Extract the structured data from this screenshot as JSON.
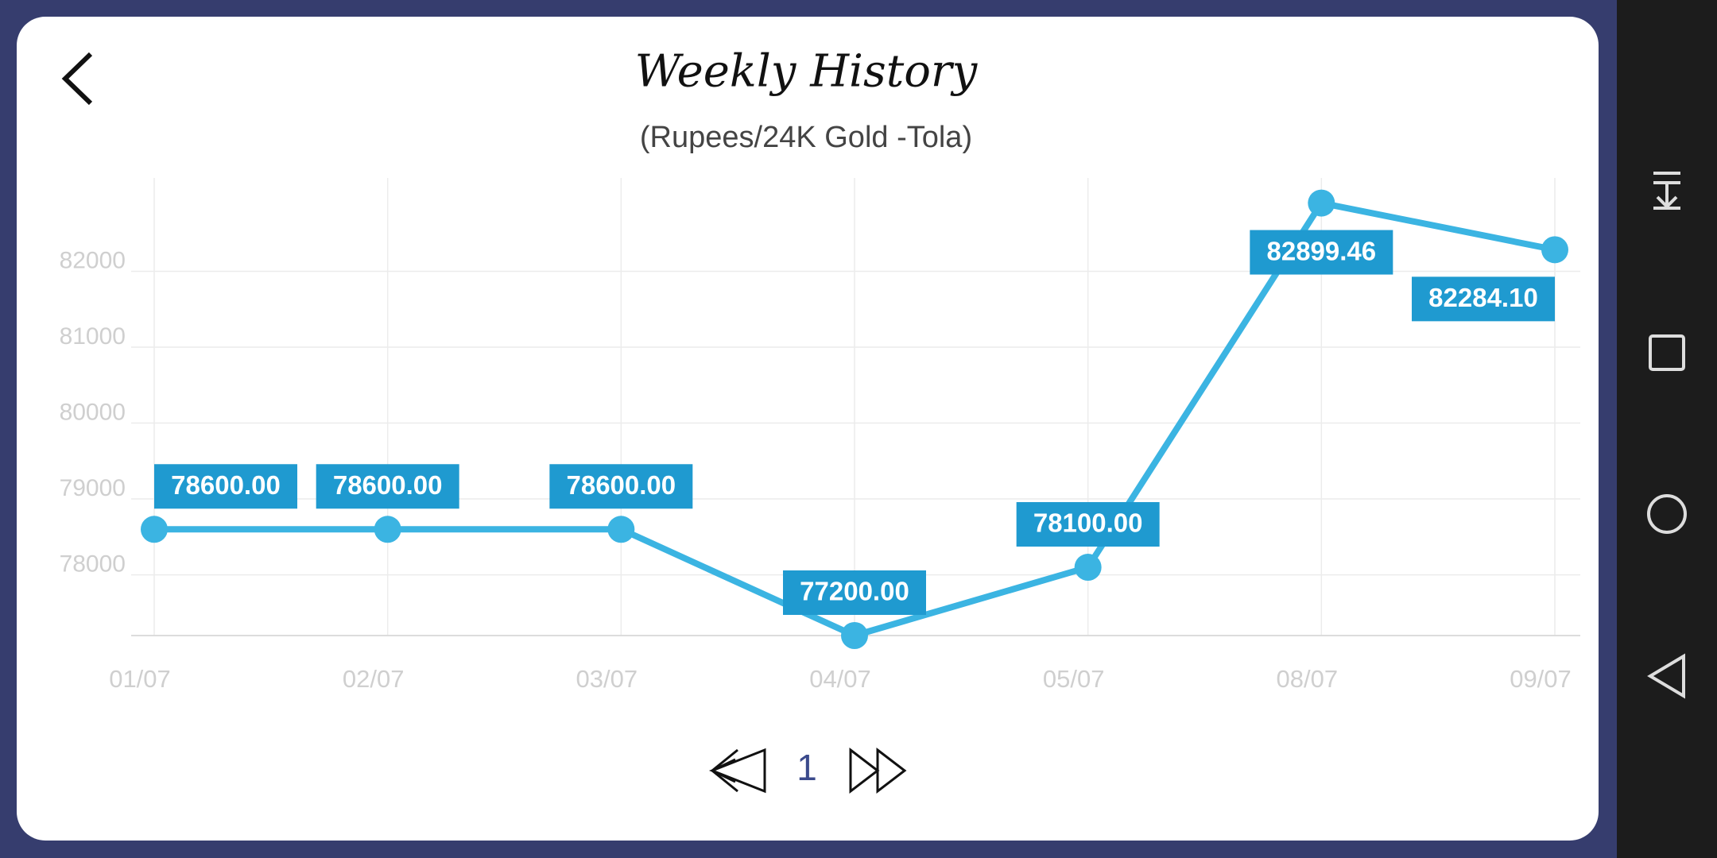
{
  "chart_data": {
    "type": "line",
    "title": "Weekly History",
    "subtitle": "(Rupees/24K Gold -Tola)",
    "categories": [
      "01/07",
      "02/07",
      "03/07",
      "04/07",
      "05/07",
      "08/07",
      "09/07"
    ],
    "values": [
      78600,
      78600,
      78600,
      77200,
      78100,
      82899.46,
      82284.1
    ],
    "value_labels": [
      "78600.00",
      "78600.00",
      "78600.00",
      "77200.00",
      "78100.00",
      "82899.46",
      "82284.10"
    ],
    "color": "#3bb4e2",
    "ylim": [
      77200,
      83230
    ],
    "yticks": [
      78000,
      79000,
      80000,
      81000,
      82000
    ],
    "grid": true
  },
  "pagination": {
    "page": 1
  }
}
